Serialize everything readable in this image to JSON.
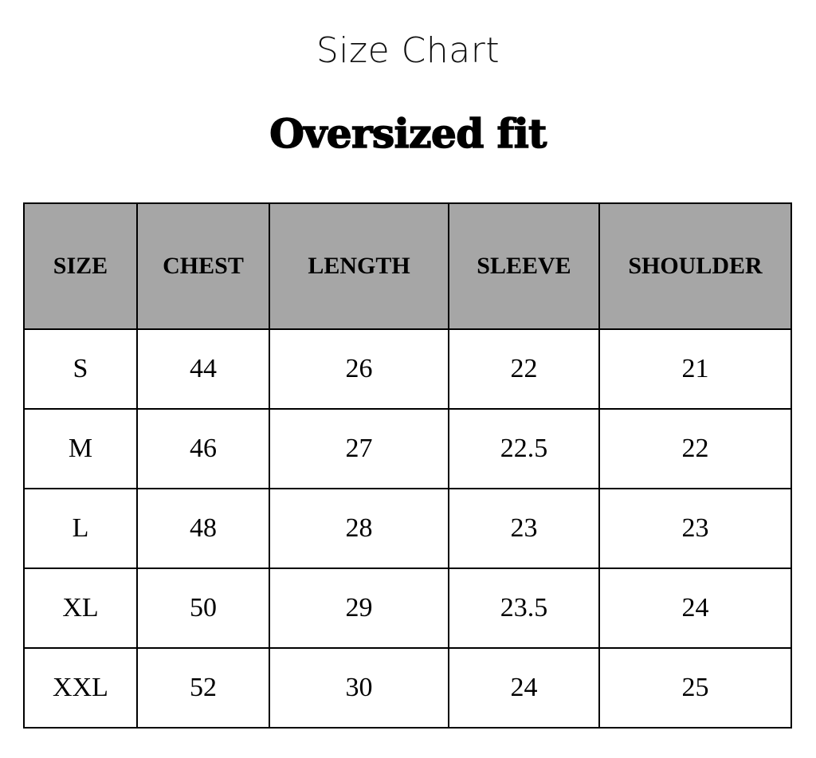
{
  "title": "Size Chart",
  "subtitle": "Oversized fit",
  "colors": {
    "header_bg": "#a6a6a6",
    "border": "#000000"
  },
  "table": {
    "headers": [
      "SIZE",
      "CHEST",
      "LENGTH",
      "SLEEVE",
      "SHOULDER"
    ],
    "rows": [
      [
        "S",
        "44",
        "26",
        "22",
        "21"
      ],
      [
        "M",
        "46",
        "27",
        "22.5",
        "22"
      ],
      [
        "L",
        "48",
        "28",
        "23",
        "23"
      ],
      [
        "XL",
        "50",
        "29",
        "23.5",
        "24"
      ],
      [
        "XXL",
        "52",
        "30",
        "24",
        "25"
      ]
    ]
  }
}
